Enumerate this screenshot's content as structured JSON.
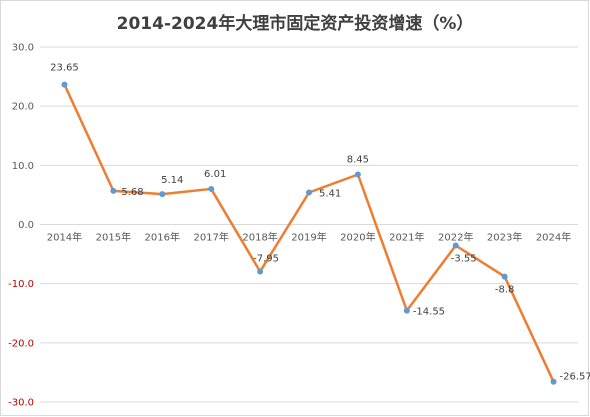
{
  "chart_data": {
    "type": "line",
    "title": "2014-2024年大理市固定资产投资增速（%）",
    "categories": [
      "2014年",
      "2015年",
      "2016年",
      "2017年",
      "2018年",
      "2019年",
      "2020年",
      "2021年",
      "2022年",
      "2023年",
      "2024年"
    ],
    "series": [
      {
        "values": [
          23.65,
          5.68,
          5.14,
          6.01,
          -7.95,
          5.41,
          8.45,
          -14.55,
          -3.55,
          -8.8,
          -26.57
        ],
        "labels": [
          "23.65",
          "5.68",
          "5.14",
          "6.01",
          "-7.95",
          "5.41",
          "8.45",
          "-14.55",
          "-3.55",
          "-8.8",
          "-26.57"
        ]
      }
    ],
    "ylim": [
      -30,
      30
    ],
    "yticks": [
      30,
      20,
      10,
      0,
      -10,
      -20,
      -30
    ],
    "ytick_labels": [
      "30.0",
      "20.0",
      "10.0",
      "0.0",
      "-10.0",
      "-20.0",
      "-30.0"
    ],
    "grid": true,
    "line_color": "#ed7d31",
    "marker_color": "#5b9bd5",
    "positive_tick_color": "#595959",
    "negative_tick_color": "#c00000"
  }
}
